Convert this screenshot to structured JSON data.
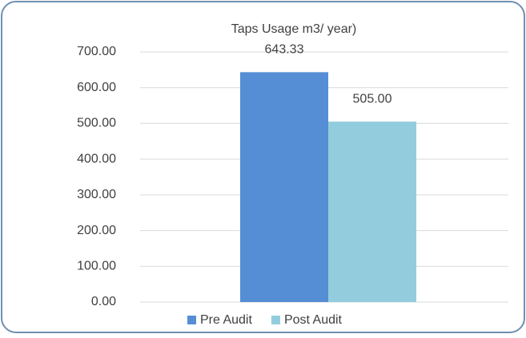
{
  "chart_data": {
    "type": "bar",
    "title": "Taps Usage m3/ year)",
    "categories": [
      null
    ],
    "series": [
      {
        "name": "Pre Audit",
        "color": "#558ed5",
        "values": [
          643.33
        ],
        "value_labels": [
          "643.33"
        ]
      },
      {
        "name": "Post Audit",
        "color": "#93cddd",
        "values": [
          505.0
        ],
        "value_labels": [
          "505.00"
        ]
      }
    ],
    "ylim": [
      0,
      700
    ],
    "yticks": [
      {
        "value": 0,
        "label": "0.00"
      },
      {
        "value": 100,
        "label": "100.00"
      },
      {
        "value": 200,
        "label": "200.00"
      },
      {
        "value": 300,
        "label": "300.00"
      },
      {
        "value": 400,
        "label": "400.00"
      },
      {
        "value": 500,
        "label": "500.00"
      },
      {
        "value": 600,
        "label": "600.00"
      },
      {
        "value": 700,
        "label": "700.00"
      }
    ],
    "grid": true,
    "legend": "bottom"
  }
}
